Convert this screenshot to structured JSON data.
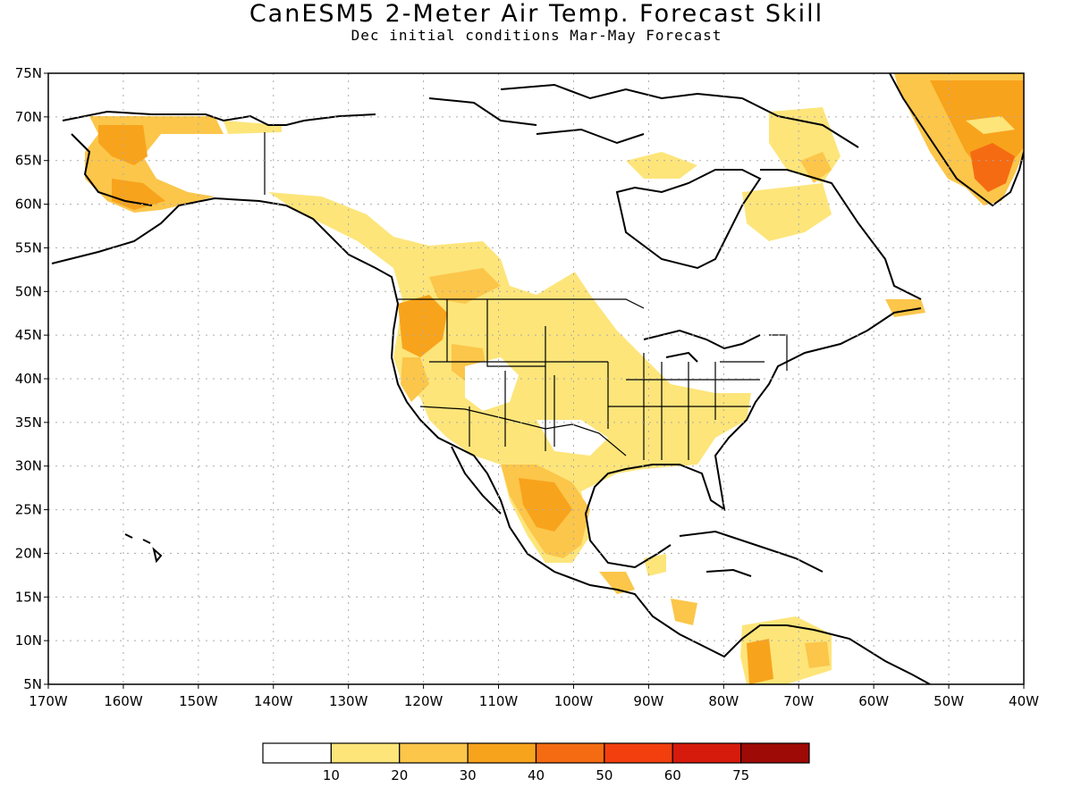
{
  "header": {
    "title": "CanESM5 2-Meter Air Temp. Forecast Skill",
    "subtitle": "Dec initial conditions  Mar-May Forecast"
  },
  "map": {
    "lat_ticks": [
      "75N",
      "70N",
      "65N",
      "60N",
      "55N",
      "50N",
      "45N",
      "40N",
      "35N",
      "30N",
      "25N",
      "20N",
      "15N",
      "10N",
      "5N"
    ],
    "lon_ticks": [
      "170W",
      "160W",
      "150W",
      "140W",
      "130W",
      "120W",
      "110W",
      "100W",
      "90W",
      "80W",
      "70W",
      "60W",
      "50W",
      "40W"
    ],
    "lat_range": [
      5,
      75
    ],
    "lon_range": [
      -170,
      -40
    ],
    "grid": true,
    "gridline_color": "#aaaaaa"
  },
  "colorbar": {
    "labels": [
      "10",
      "20",
      "30",
      "40",
      "50",
      "60",
      "75"
    ],
    "colors": [
      "#ffffff",
      "#fde57a",
      "#fbc64a",
      "#f8a31c",
      "#f56b12",
      "#f23f0d",
      "#d61a0c",
      "#9e0a05"
    ]
  },
  "colors": {
    "land_outline": "#000000",
    "skill_low": "#fde57a",
    "skill_mid": "#fbc64a",
    "skill_high": "#f8a31c",
    "skill_higher": "#f56b12"
  }
}
